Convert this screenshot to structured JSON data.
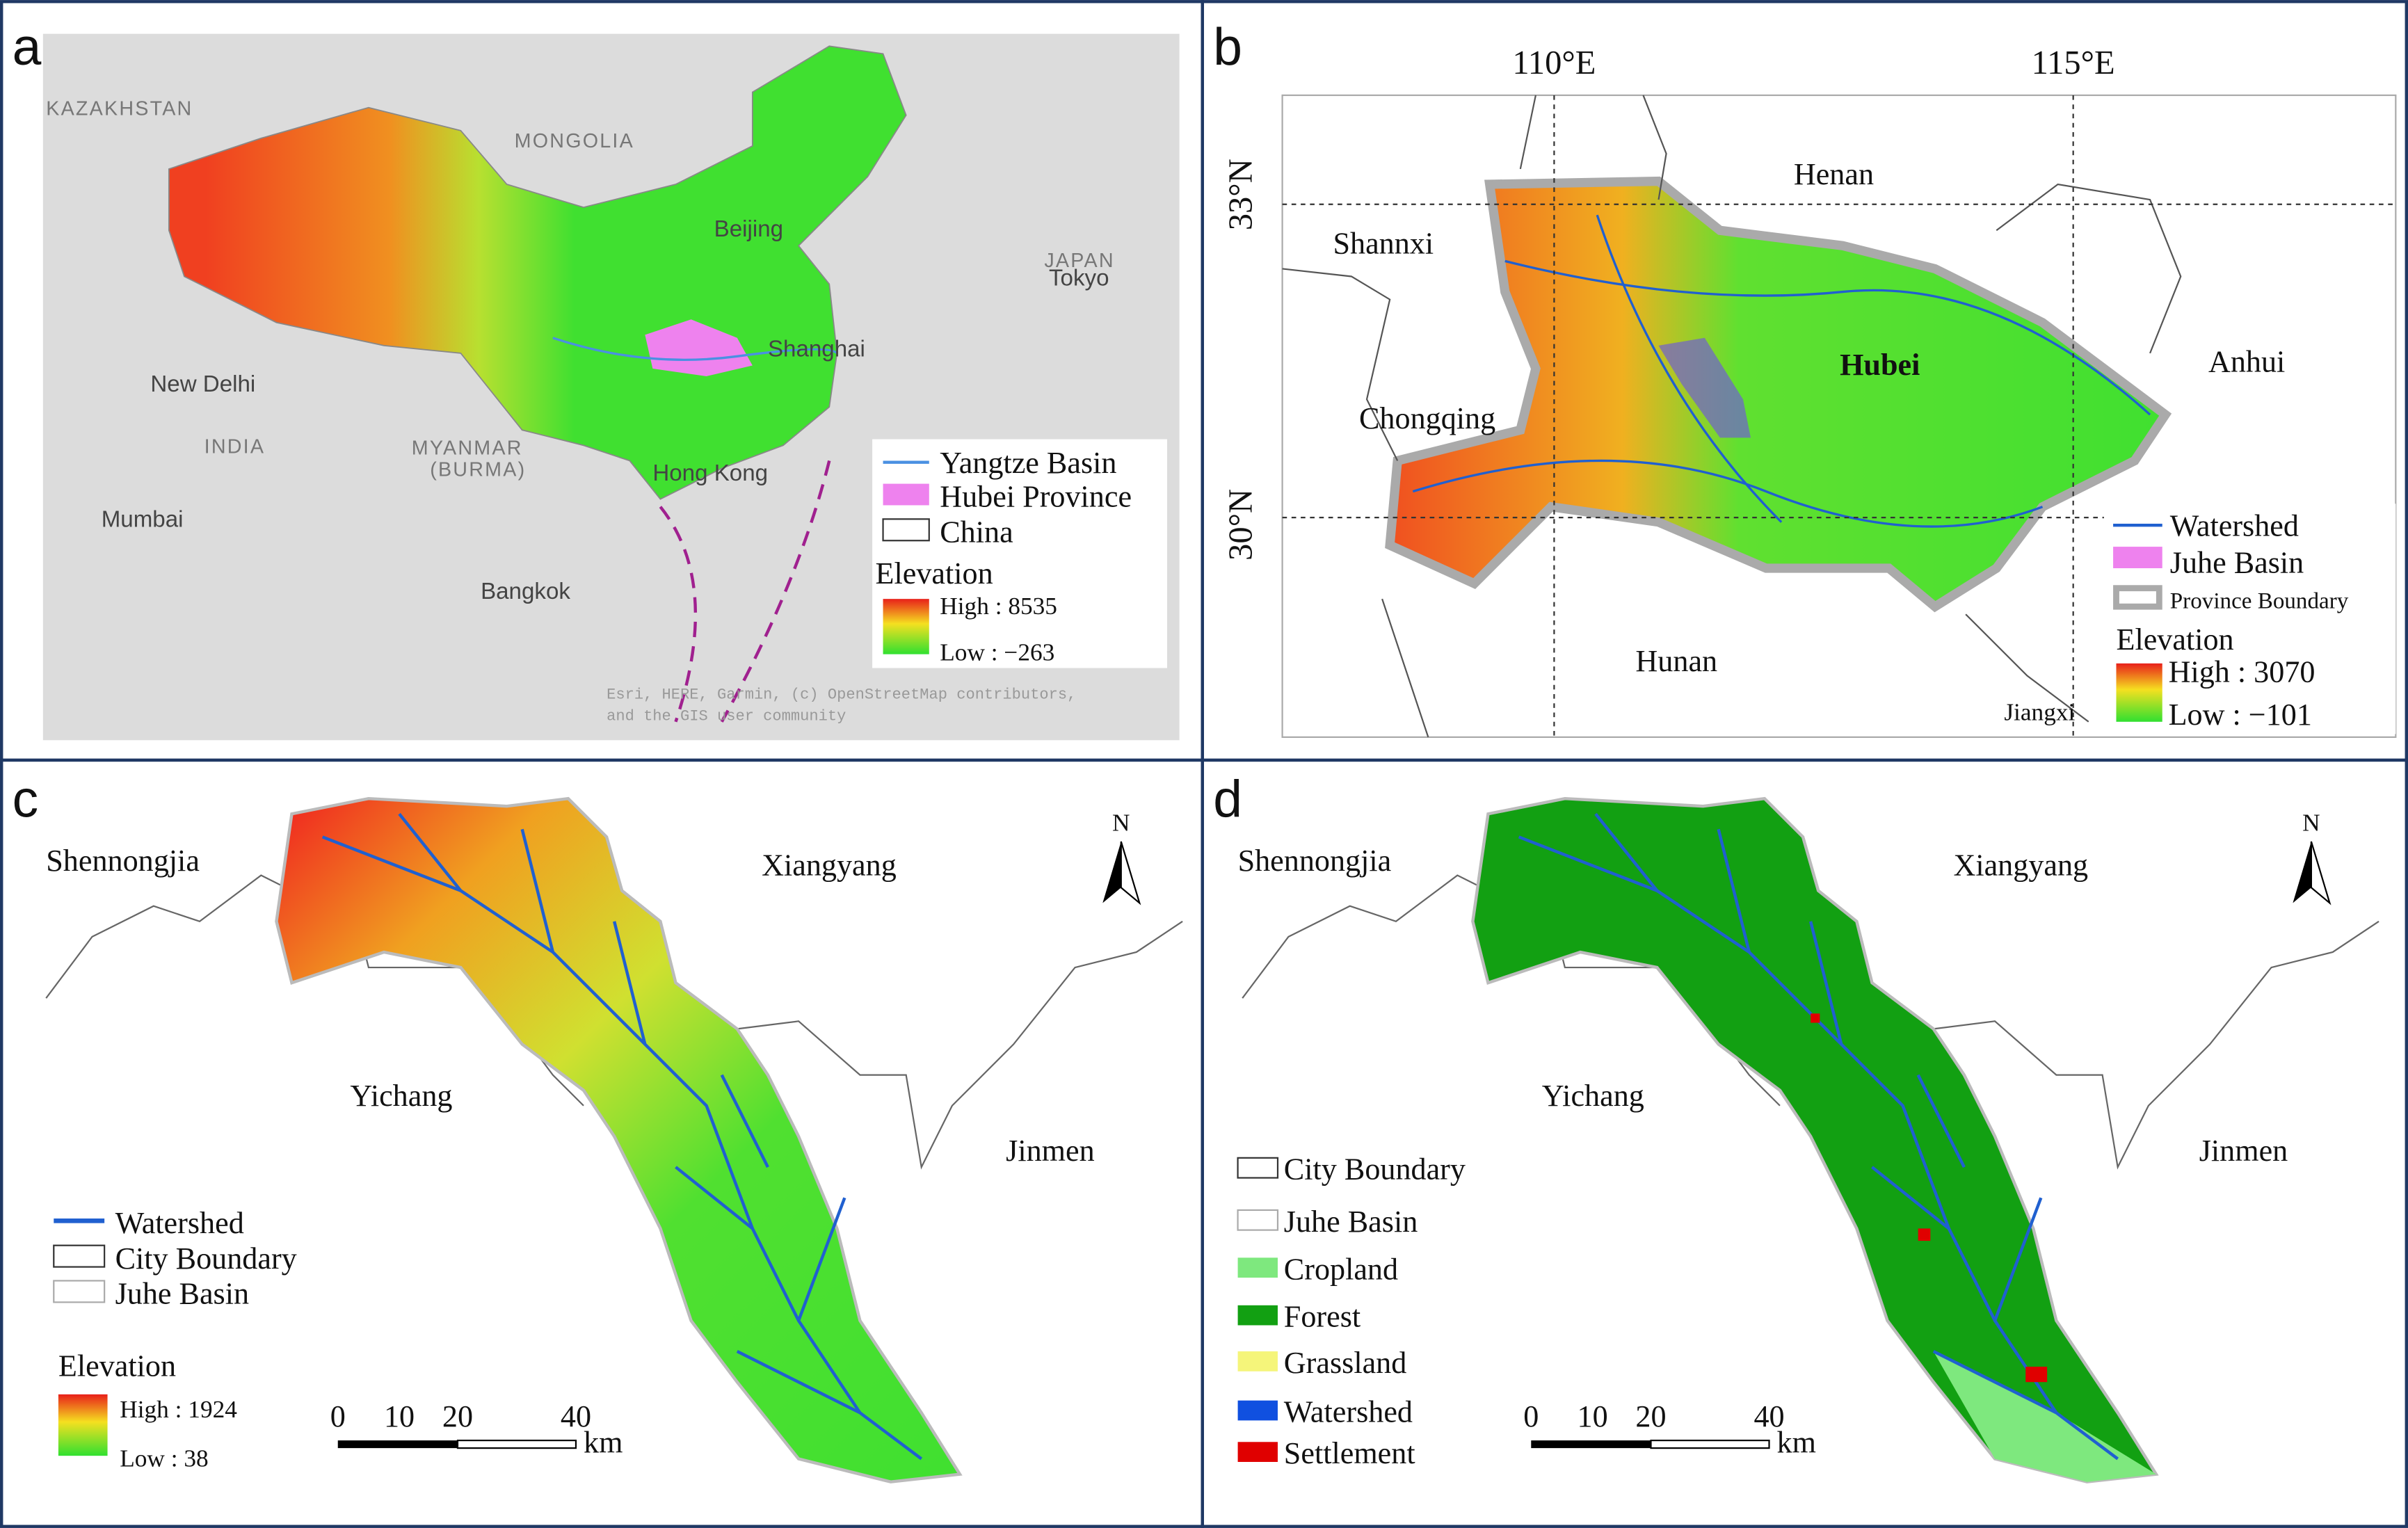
{
  "panels": [
    {
      "letter": "a",
      "places": [
        "KAZAKHSTAN",
        "MONGOLIA",
        "Beijing",
        "JAPAN",
        "Tokyo",
        "Shanghai",
        "New Delhi",
        "INDIA",
        "MYANMAR",
        "(BURMA)",
        "Hong Kong",
        "Mumbai",
        "Bangkok"
      ],
      "legend": [
        "Yangtze Basin",
        "Hubei Province",
        "China"
      ],
      "elevation": {
        "title": "Elevation",
        "high": "High : 8535",
        "low": "Low : −263"
      },
      "attribution": [
        "Esri, HERE, Garmin, (c) OpenStreetMap contributors,",
        "and the GIS user community"
      ]
    },
    {
      "letter": "b",
      "lon": [
        "110°E",
        "115°E"
      ],
      "lat": [
        "33°N",
        "30°N"
      ],
      "places": [
        "Henan",
        "Shannxi",
        "Hubei",
        "Anhui",
        "Chongqing",
        "Hunan",
        "Jiangxi"
      ],
      "legend": [
        "Watershed",
        "Juhe Basin",
        "Province Boundary"
      ],
      "elevation": {
        "title": "Elevation",
        "high": "High : 3070",
        "low": "Low : −101"
      }
    },
    {
      "letter": "c",
      "places": [
        "Shennongjia",
        "Xiangyang",
        "Yichang",
        "Jinmen"
      ],
      "north": "N",
      "legend": [
        "Watershed",
        "City Boundary",
        "Juhe Basin"
      ],
      "elevation": {
        "title": "Elevation",
        "high": "High : 1924",
        "low": "Low : 38"
      },
      "scale": [
        "0",
        "10",
        "20",
        "40",
        "km"
      ]
    },
    {
      "letter": "d",
      "places": [
        "Shennongjia",
        "Xiangyang",
        "Yichang",
        "Jinmen"
      ],
      "north": "N",
      "legend": [
        "City Boundary",
        "Juhe Basin",
        "Cropland",
        "Forest",
        "Grassland",
        "Watershed",
        "Settlement"
      ],
      "scale": [
        "0",
        "10",
        "20",
        "40",
        "km"
      ]
    }
  ]
}
